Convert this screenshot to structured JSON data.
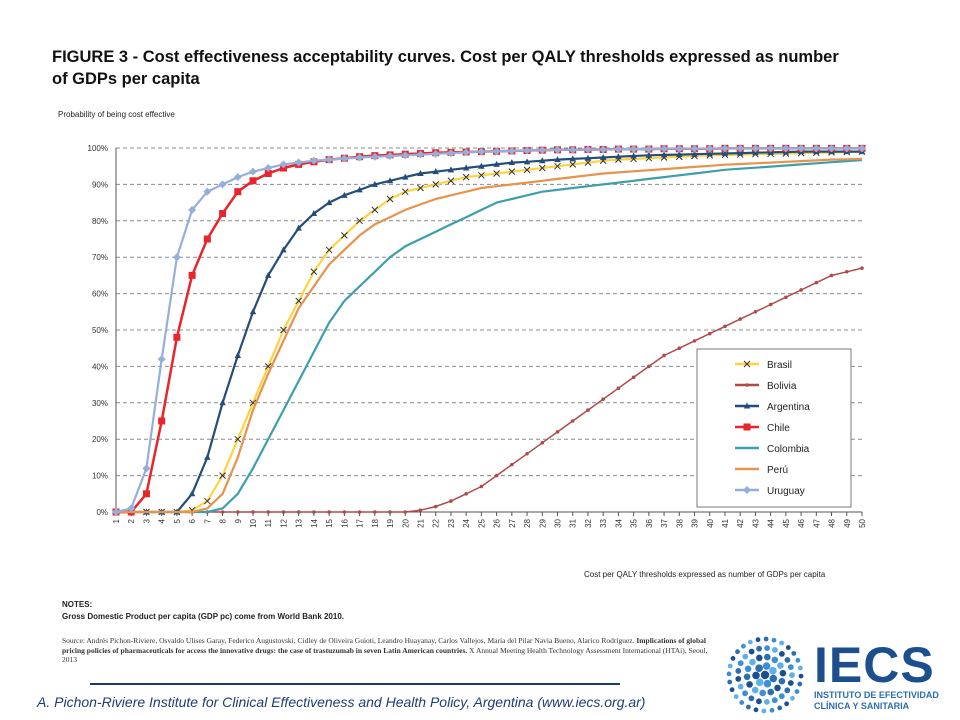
{
  "title_line1": "FIGURE 3 - Cost effectiveness acceptability curves. Cost per QALY thresholds expressed as number",
  "title_line2": "of GDPs per capita",
  "notes_label": "NOTES:",
  "notes_text": "Gross Domestic Product per capita (GDP pc) come from World Bank 2010.",
  "source_text": "Source: Andrés Pichon-Riviere, Osvaldo Ulises Garay, Federico Augustovski, Cidley de Oliveira Guioti, Leandro Huayanay, Carlos Vallejos, María del Pilar Navia Bueno, Alarico Rodríguez.",
  "source_bold": "Implications of global pricing policies of pharmaceuticals for access the innovative drugs: the case of trastuzumab in seven Latin American countries.",
  "source_tail": "X Annual Meeting Health Technology Assessment International (HTAi), Seoul, 2013",
  "footer": "A. Pichon-Riviere Institute for Clinical Effectiveness and Health Policy, Argentina (www.iecs.org.ar)",
  "logo": {
    "name": "IECS",
    "line1": "INSTITUTO DE EFECTIVIDAD",
    "line2": "CLÍNICA Y SANITARIA",
    "colors": [
      "#1d4f8f",
      "#2a6fb0",
      "#3b8fd6",
      "#5fb0e8"
    ]
  },
  "chart_data": {
    "type": "line",
    "ylabel": "Probability of being cost effective",
    "xlabel": "Cost per QALY thresholds expressed as number of GDPs per capita",
    "x": [
      1,
      2,
      3,
      4,
      5,
      6,
      7,
      8,
      9,
      10,
      11,
      12,
      13,
      14,
      15,
      16,
      17,
      18,
      19,
      20,
      21,
      22,
      23,
      24,
      25,
      26,
      27,
      28,
      29,
      30,
      31,
      32,
      33,
      34,
      35,
      36,
      37,
      38,
      39,
      40,
      41,
      42,
      43,
      44,
      45,
      46,
      47,
      48,
      49,
      50
    ],
    "ylim": [
      0,
      100
    ],
    "yticks": [
      "0%",
      "10%",
      "20%",
      "30%",
      "40%",
      "50%",
      "60%",
      "70%",
      "80%",
      "90%",
      "100%"
    ],
    "grid": true,
    "legend_position": "bottom-right",
    "series": [
      {
        "name": "Brasil",
        "color": "#ffd23f",
        "marker": "x",
        "values": [
          0,
          0,
          0,
          0,
          0,
          0.5,
          3,
          10,
          20,
          30,
          40,
          50,
          58,
          66,
          72,
          76,
          80,
          83,
          86,
          88,
          89,
          90,
          91,
          92,
          92.5,
          93,
          93.5,
          94,
          94.5,
          95,
          95.5,
          96,
          96.5,
          96.8,
          97,
          97.2,
          97.4,
          97.6,
          97.8,
          98,
          98.1,
          98.2,
          98.3,
          98.4,
          98.5,
          98.6,
          98.7,
          98.8,
          98.9,
          99
        ]
      },
      {
        "name": "Bolivia",
        "color": "#b04a48",
        "marker": "dot",
        "values": [
          0,
          0,
          0,
          0,
          0,
          0,
          0,
          0,
          0,
          0,
          0,
          0,
          0,
          0,
          0,
          0,
          0,
          0,
          0,
          0,
          0.5,
          1.5,
          3,
          5,
          7,
          10,
          13,
          16,
          19,
          22,
          25,
          28,
          31,
          34,
          37,
          40,
          43,
          45,
          47,
          49,
          51,
          53,
          55,
          57,
          59,
          61,
          63,
          65,
          66,
          67
        ]
      },
      {
        "name": "Argentina",
        "color": "#244d7a",
        "marker": "triangle",
        "values": [
          0,
          0,
          0,
          0,
          0,
          5,
          15,
          30,
          43,
          55,
          65,
          72,
          78,
          82,
          85,
          87,
          88.5,
          90,
          91,
          92,
          93,
          93.5,
          94,
          94.5,
          95,
          95.5,
          96,
          96.2,
          96.5,
          96.8,
          97,
          97.2,
          97.4,
          97.6,
          97.8,
          98,
          98.1,
          98.2,
          98.3,
          98.4,
          98.5,
          98.6,
          98.7,
          98.8,
          98.9,
          99,
          99,
          99,
          99,
          99
        ]
      },
      {
        "name": "Chile",
        "color": "#e8242c",
        "marker": "square",
        "values": [
          0,
          0,
          5,
          25,
          48,
          65,
          75,
          82,
          88,
          91,
          93,
          94.5,
          95.5,
          96.2,
          96.8,
          97.2,
          97.6,
          97.9,
          98.1,
          98.3,
          98.5,
          98.7,
          98.8,
          98.9,
          99,
          99.1,
          99.2,
          99.3,
          99.4,
          99.5,
          99.5,
          99.6,
          99.6,
          99.7,
          99.7,
          99.7,
          99.8,
          99.8,
          99.8,
          99.8,
          99.9,
          99.9,
          99.9,
          99.9,
          99.9,
          99.9,
          99.9,
          99.9,
          99.9,
          99.9
        ]
      },
      {
        "name": "Colombia",
        "color": "#3c9fab",
        "marker": "none",
        "values": [
          0,
          0,
          0,
          0,
          0,
          0,
          0,
          1,
          5,
          12,
          20,
          28,
          36,
          44,
          52,
          58,
          62,
          66,
          70,
          73,
          75,
          77,
          79,
          81,
          83,
          85,
          86,
          87,
          88,
          88.5,
          89,
          89.5,
          90,
          90.5,
          91,
          91.5,
          92,
          92.5,
          93,
          93.5,
          94,
          94.3,
          94.6,
          94.9,
          95.2,
          95.5,
          95.8,
          96.1,
          96.4,
          96.7
        ]
      },
      {
        "name": "Perú",
        "color": "#e8924c",
        "marker": "none",
        "values": [
          0,
          0,
          0,
          0,
          0,
          0,
          1,
          5,
          15,
          28,
          38,
          47,
          56,
          62,
          68,
          72,
          76,
          79,
          81,
          83,
          84.5,
          86,
          87,
          88,
          89,
          89.5,
          90,
          90.5,
          91,
          91.5,
          92,
          92.5,
          93,
          93.3,
          93.6,
          93.9,
          94.2,
          94.5,
          94.8,
          95.1,
          95.4,
          95.6,
          95.8,
          96,
          96.2,
          96.4,
          96.6,
          96.8,
          96.9,
          97
        ]
      },
      {
        "name": "Uruguay",
        "color": "#94b0da",
        "marker": "diamond",
        "values": [
          0,
          1,
          12,
          42,
          70,
          83,
          88,
          90,
          92,
          93.5,
          94.5,
          95.5,
          96,
          96.5,
          96.8,
          97.1,
          97.4,
          97.6,
          97.8,
          98,
          98.2,
          98.4,
          98.6,
          98.8,
          99,
          99.1,
          99.2,
          99.3,
          99.4,
          99.5,
          99.5,
          99.6,
          99.6,
          99.7,
          99.7,
          99.7,
          99.8,
          99.8,
          99.8,
          99.8,
          99.9,
          99.9,
          99.9,
          99.9,
          99.9,
          99.9,
          99.9,
          99.9,
          99.9,
          99.9
        ]
      }
    ]
  }
}
